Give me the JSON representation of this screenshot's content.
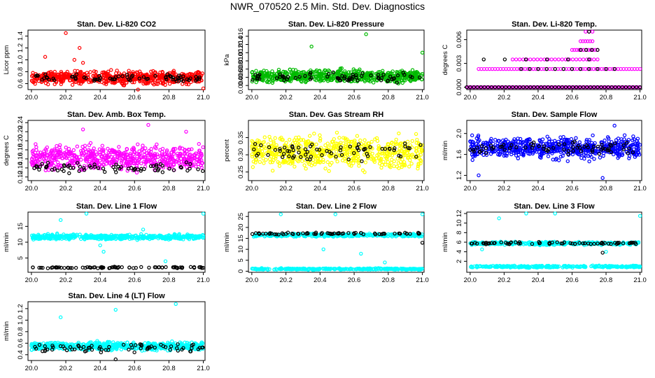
{
  "title": "NWR_070520  2.5 Min. Std. Dev. Diagnostics",
  "chart_data": [
    {
      "type": "scatter",
      "title": "Stan. Dev. Li-820 CO2",
      "xlabel": "",
      "ylabel": "Licor ppm",
      "xlim": [
        19.98,
        21.01
      ],
      "ylim": [
        0.5,
        1.5
      ],
      "xticks": [
        "20.0",
        "20.2",
        "20.4",
        "20.6",
        "20.8",
        "21.0"
      ],
      "xtick_values": [
        20.0,
        20.2,
        20.4,
        20.6,
        20.8,
        21.0
      ],
      "yticks": [
        "0.6",
        "0.8",
        "1.0",
        "1.2",
        "1.4"
      ],
      "ytick_values": [
        0.6,
        0.8,
        1.0,
        1.2,
        1.4
      ],
      "series": [
        {
          "color": "#ff0000",
          "band": [
            0.55,
            0.85
          ],
          "count": 600,
          "outliers": [
            [
              20.08,
              1.05
            ],
            [
              20.2,
              1.45
            ],
            [
              20.25,
              1.0
            ],
            [
              20.28,
              1.2
            ],
            [
              20.3,
              0.95
            ],
            [
              20.62,
              0.5
            ],
            [
              21.0,
              0.52
            ]
          ]
        },
        {
          "color": "#000000",
          "band": [
            0.6,
            0.78
          ],
          "count": 70,
          "outliers": []
        }
      ]
    },
    {
      "type": "scatter",
      "title": "Stan. Dev. Li-820 Pressure",
      "xlabel": "",
      "ylabel": "kPa",
      "xlim": [
        19.98,
        21.01
      ],
      "ylim": [
        0.003,
        0.0175
      ],
      "xticks": [
        "20.0",
        "20.2",
        "20.4",
        "20.6",
        "20.8",
        "21.0"
      ],
      "xtick_values": [
        20.0,
        20.2,
        20.4,
        20.6,
        20.8,
        21.0
      ],
      "yticks": [
        "0.004",
        "0.006",
        "0.008",
        "0.010",
        "0.012",
        "0.014",
        "0.016"
      ],
      "ytick_values": [
        0.004,
        0.006,
        0.008,
        0.01,
        0.012,
        0.014,
        0.016
      ],
      "series": [
        {
          "color": "#00bb00",
          "band": [
            0.004,
            0.0085
          ],
          "count": 600,
          "outliers": [
            [
              20.35,
              0.0135
            ],
            [
              20.67,
              0.0165
            ],
            [
              21.0,
              0.012
            ]
          ]
        },
        {
          "color": "#000000",
          "band": [
            0.0045,
            0.0075
          ],
          "count": 70,
          "outliers": []
        }
      ]
    },
    {
      "type": "scatter",
      "title": "Stan. Dev. Li-820 Temp.",
      "xlabel": "",
      "ylabel": "degrees C",
      "xlim": [
        19.98,
        21.01
      ],
      "ylim": [
        -0.0003,
        0.0072
      ],
      "xticks": [
        "20.0",
        "20.2",
        "20.4",
        "20.6",
        "20.8",
        "21.0"
      ],
      "xtick_values": [
        20.0,
        20.2,
        20.4,
        20.6,
        20.8,
        21.0
      ],
      "yticks": [
        "0.000",
        "0.003",
        "0.006"
      ],
      "ytick_values": [
        0.0,
        0.003,
        0.006
      ],
      "levels": [
        0,
        0.0023,
        0.0035,
        0.0047,
        0.0058,
        0.007
      ],
      "series": [
        {
          "color": "#ff00ff",
          "level_rows": [
            [
              0,
              19.98,
              21.0,
              130
            ],
            [
              0.0023,
              20.05,
              21.0,
              60
            ],
            [
              0.0035,
              20.25,
              20.75,
              25
            ],
            [
              0.0047,
              20.6,
              20.75,
              12
            ],
            [
              0.0058,
              20.65,
              20.72,
              6
            ],
            [
              0.007,
              20.68,
              20.72,
              3
            ]
          ]
        },
        {
          "color": "#000000",
          "level_rows": [
            [
              0,
              19.98,
              21.0,
              50
            ],
            [
              0.0023,
              20.3,
              20.85,
              12
            ],
            [
              0.0035,
              20.08,
              20.7,
              6
            ],
            [
              0.0047,
              20.65,
              20.75,
              4
            ],
            [
              0.007,
              20.68,
              20.72,
              1
            ]
          ]
        }
      ]
    },
    {
      "type": "scatter",
      "title": "Stan. Dev. Amb. Box Temp.",
      "xlabel": "",
      "ylabel": "degrees C",
      "xlim": [
        19.98,
        21.01
      ],
      "ylim": [
        0.112,
        0.245
      ],
      "xticks": [
        "20.0",
        "20.2",
        "20.4",
        "20.6",
        "20.8",
        "21.0"
      ],
      "xtick_values": [
        20.0,
        20.2,
        20.4,
        20.6,
        20.8,
        21.0
      ],
      "yticks": [
        "0.12",
        "0.14",
        "0.16",
        "0.18",
        "0.20",
        "0.22",
        "0.24"
      ],
      "ytick_values": [
        0.12,
        0.14,
        0.16,
        0.18,
        0.2,
        0.22,
        0.24
      ],
      "series": [
        {
          "color": "#ff00ff",
          "band": [
            0.125,
            0.2
          ],
          "count": 600,
          "outliers": [
            [
              20.3,
              0.225
            ],
            [
              20.68,
              0.235
            ],
            [
              20.9,
              0.22
            ]
          ]
        },
        {
          "color": "#000000",
          "band": [
            0.125,
            0.155
          ],
          "count": 70,
          "outliers": []
        }
      ]
    },
    {
      "type": "scatter",
      "title": "Stan. Dev. Gas Stream RH",
      "xlabel": "",
      "ylabel": "percent",
      "xlim": [
        19.98,
        21.01
      ],
      "ylim": [
        0.225,
        0.4
      ],
      "xticks": [
        "20.0",
        "20.2",
        "20.4",
        "20.6",
        "20.8",
        "21.0"
      ],
      "xtick_values": [
        20.0,
        20.2,
        20.4,
        20.6,
        20.8,
        21.0
      ],
      "yticks": [
        "0.25",
        "0.30",
        "0.35"
      ],
      "ytick_values": [
        0.25,
        0.3,
        0.35
      ],
      "series": [
        {
          "color": "#ffff00",
          "band": [
            0.24,
            0.375
          ],
          "count": 600,
          "outliers": []
        },
        {
          "color": "#000000",
          "band": [
            0.27,
            0.35
          ],
          "count": 70,
          "outliers": []
        }
      ]
    },
    {
      "type": "scatter",
      "title": "Stan. Dev. Sample Flow",
      "xlabel": "",
      "ylabel": "ml/min",
      "xlim": [
        19.98,
        21.01
      ],
      "ylim": [
        1.1,
        2.25
      ],
      "xticks": [
        "20.0",
        "20.2",
        "20.4",
        "20.6",
        "20.8",
        "21.0"
      ],
      "xtick_values": [
        20.0,
        20.2,
        20.4,
        20.6,
        20.8,
        21.0
      ],
      "yticks": [
        "1.2",
        "1.6",
        "2.0"
      ],
      "ytick_values": [
        1.2,
        1.6,
        2.0
      ],
      "series": [
        {
          "color": "#0000ff",
          "band": [
            1.45,
            2.0
          ],
          "count": 600,
          "outliers": [
            [
              20.05,
              1.2
            ],
            [
              20.78,
              1.15
            ],
            [
              20.85,
              2.15
            ]
          ]
        },
        {
          "color": "#000000",
          "band": [
            1.55,
            1.9
          ],
          "count": 70,
          "outliers": []
        }
      ]
    },
    {
      "type": "scatter",
      "title": "Stan. Dev. Line 1 Flow",
      "xlabel": "",
      "ylabel": "ml/min",
      "xlim": [
        19.98,
        21.01
      ],
      "ylim": [
        0.5,
        19.5
      ],
      "xticks": [
        "20.0",
        "20.2",
        "20.4",
        "20.6",
        "20.8",
        "21.0"
      ],
      "xtick_values": [
        20.0,
        20.2,
        20.4,
        20.6,
        20.8,
        21.0
      ],
      "yticks": [
        "5",
        "10",
        "15"
      ],
      "ytick_values": [
        5,
        10,
        15
      ],
      "series": [
        {
          "color": "#00ffff",
          "band": [
            10.5,
            12.8
          ],
          "count": 500,
          "outliers": [
            [
              20.17,
              17
            ],
            [
              20.32,
              19
            ],
            [
              20.4,
              9
            ],
            [
              20.42,
              7
            ],
            [
              20.65,
              14
            ],
            [
              20.78,
              4
            ],
            [
              21.0,
              19
            ]
          ]
        },
        {
          "color": "#000000",
          "band": [
            1.7,
            2.3
          ],
          "count": 80,
          "outliers": []
        }
      ]
    },
    {
      "type": "scatter",
      "title": "Stan. Dev. Line 2 Flow",
      "xlabel": "",
      "ylabel": "ml/min",
      "xlim": [
        19.98,
        21.01
      ],
      "ylim": [
        -0.5,
        27
      ],
      "xticks": [
        "20.0",
        "20.2",
        "20.4",
        "20.6",
        "20.8",
        "21.0"
      ],
      "xtick_values": [
        20.0,
        20.2,
        20.4,
        20.6,
        20.8,
        21.0
      ],
      "yticks": [
        "0",
        "5",
        "10",
        "15",
        "20",
        "25"
      ],
      "ytick_values": [
        0,
        5,
        10,
        15,
        20,
        25
      ],
      "series": [
        {
          "color": "#00ffff",
          "band": [
            15.5,
            17.5
          ],
          "count": 350,
          "outliers": [
            [
              20.42,
              10
            ],
            [
              20.64,
              8
            ],
            [
              20.78,
              4
            ],
            [
              20.17,
              26
            ],
            [
              20.49,
              26
            ],
            [
              21.0,
              26
            ]
          ]
        },
        {
          "color": "#00ffff",
          "band": [
            0.5,
            1.5
          ],
          "count": 300,
          "outliers": []
        },
        {
          "color": "#000000",
          "band": [
            16.5,
            17.8
          ],
          "count": 70,
          "outliers": [
            [
              21.0,
              13
            ]
          ]
        }
      ]
    },
    {
      "type": "scatter",
      "title": "Stan. Dev. Line 3 Flow",
      "xlabel": "",
      "ylabel": "ml/min",
      "xlim": [
        19.98,
        21.01
      ],
      "ylim": [
        -0.3,
        12.3
      ],
      "xticks": [
        "20.0",
        "20.2",
        "20.4",
        "20.6",
        "20.8",
        "21.0"
      ],
      "xtick_values": [
        20.0,
        20.2,
        20.4,
        20.6,
        20.8,
        21.0
      ],
      "yticks": [
        "2",
        "4",
        "6",
        "8",
        "10",
        "12"
      ],
      "ytick_values": [
        2,
        4,
        6,
        8,
        10,
        12
      ],
      "series": [
        {
          "color": "#00ffff",
          "band": [
            5.3,
            6.2
          ],
          "count": 300,
          "outliers": [
            [
              20.07,
              4.5
            ],
            [
              20.17,
              11
            ],
            [
              20.33,
              12
            ],
            [
              20.5,
              12
            ],
            [
              20.8,
              4
            ],
            [
              21.0,
              11.5
            ]
          ]
        },
        {
          "color": "#00ffff",
          "band": [
            0.6,
            1.2
          ],
          "count": 300,
          "outliers": []
        },
        {
          "color": "#000000",
          "band": [
            5.5,
            6.1
          ],
          "count": 70,
          "outliers": [
            [
              20.78,
              3.8
            ]
          ]
        }
      ]
    },
    {
      "type": "scatter",
      "title": "Stan. Dev. Line 4 (LT) Flow",
      "xlabel": "",
      "ylabel": "ml/min",
      "xlim": [
        19.98,
        21.01
      ],
      "ylim": [
        0.3,
        1.32
      ],
      "xticks": [
        "20.0",
        "20.2",
        "20.4",
        "20.6",
        "20.8",
        "21.0"
      ],
      "xtick_values": [
        20.0,
        20.2,
        20.4,
        20.6,
        20.8,
        21.0
      ],
      "yticks": [
        "0.4",
        "0.6",
        "0.8",
        "1.0",
        "1.2"
      ],
      "ytick_values": [
        0.4,
        0.6,
        0.8,
        1.0,
        1.2
      ],
      "series": [
        {
          "color": "#00ffff",
          "band": [
            0.45,
            0.65
          ],
          "count": 600,
          "outliers": [
            [
              20.17,
              1.05
            ],
            [
              20.49,
              1.18
            ],
            [
              20.84,
              1.28
            ]
          ]
        },
        {
          "color": "#000000",
          "band": [
            0.42,
            0.62
          ],
          "count": 70,
          "outliers": [
            [
              20.49,
              0.32
            ]
          ]
        }
      ]
    }
  ]
}
